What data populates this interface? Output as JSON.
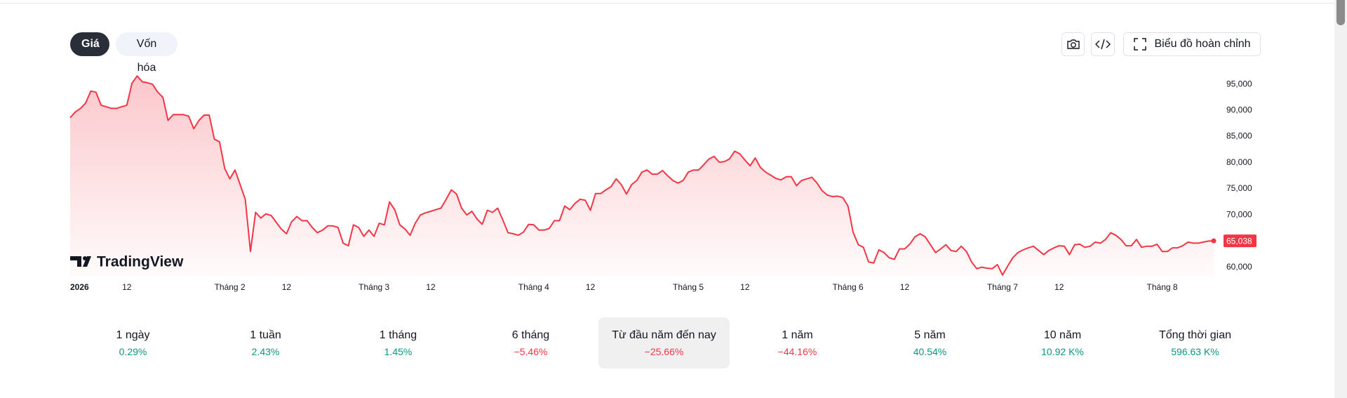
{
  "tabs": [
    "Giá",
    "Vốn hóa"
  ],
  "toolbar": {
    "fullscreen": "Biểu đồ hoàn chỉnh"
  },
  "chart_data": {
    "type": "line",
    "watermark": "TradingView",
    "color": "#f23645",
    "values": [
      88600,
      89700,
      90400,
      91400,
      93700,
      93500,
      91000,
      90700,
      90400,
      90400,
      90700,
      91000,
      95200,
      96600,
      95500,
      95300,
      95000,
      93500,
      92500,
      88100,
      89200,
      89200,
      89200,
      88900,
      86500,
      88100,
      89100,
      89100,
      84500,
      84000,
      78900,
      76900,
      78600,
      75800,
      73000,
      63000,
      70500,
      69400,
      70200,
      69900,
      68600,
      67300,
      66400,
      68700,
      69700,
      68900,
      68900,
      67600,
      66600,
      67100,
      67900,
      67900,
      67600,
      64600,
      64100,
      68100,
      67600,
      65900,
      67100,
      65900,
      68400,
      68100,
      72500,
      71000,
      68100,
      67300,
      66100,
      68400,
      70000,
      70400,
      70700,
      71000,
      71300,
      73000,
      74800,
      74000,
      71300,
      70000,
      70700,
      69200,
      68200,
      70900,
      70500,
      71300,
      69000,
      66600,
      66400,
      66100,
      66700,
      68200,
      68100,
      67100,
      67100,
      67400,
      68900,
      68900,
      71700,
      71000,
      72200,
      73000,
      72800,
      70900,
      74100,
      74100,
      74800,
      75400,
      76900,
      75800,
      74000,
      75800,
      76600,
      78200,
      78600,
      77800,
      77800,
      78500,
      77500,
      76600,
      76100,
      76600,
      78200,
      78600,
      78600,
      79600,
      80700,
      81200,
      80100,
      80200,
      80700,
      82200,
      81700,
      80500,
      79400,
      80900,
      79100,
      78200,
      77600,
      77000,
      76700,
      77300,
      77300,
      75600,
      76600,
      76900,
      77200,
      76100,
      74600,
      73800,
      73500,
      73600,
      73300,
      71700,
      66700,
      64300,
      63800,
      61000,
      60800,
      63300,
      62800,
      61800,
      61500,
      63500,
      63500,
      64400,
      65800,
      66400,
      65800,
      64300,
      62800,
      63500,
      64300,
      63200,
      63000,
      64000,
      63000,
      61000,
      59700,
      60000,
      59800,
      59700,
      60500,
      58500,
      60200,
      61800,
      62800,
      63300,
      63700,
      64000,
      63200,
      62400,
      63200,
      63700,
      64100,
      64000,
      62400,
      64300,
      64400,
      63800,
      64000,
      64800,
      64600,
      65300,
      66600,
      66100,
      65300,
      64100,
      64100,
      65300,
      63800,
      64000,
      64000,
      64400,
      63000,
      63000,
      63700,
      63700,
      64100,
      64800,
      64600,
      64600,
      64800,
      65000,
      65038
    ],
    "value_labels": [
      null,
      null,
      null,
      null,
      null,
      null,
      null,
      null,
      null,
      null,
      null,
      null,
      null,
      null,
      null,
      null,
      null,
      null,
      null,
      null,
      null,
      null,
      null,
      null,
      null,
      null,
      null,
      null,
      null,
      null,
      null,
      null,
      null,
      null,
      null,
      null,
      null,
      null,
      null,
      null,
      null,
      null,
      null,
      null,
      null,
      null,
      null,
      null,
      null,
      null,
      null,
      null,
      null,
      null,
      null,
      null,
      null,
      null,
      null,
      null,
      null,
      null,
      null,
      null,
      null,
      null,
      null,
      null,
      null,
      null,
      null,
      null,
      null,
      null,
      null,
      null,
      null,
      null,
      null,
      null,
      null,
      null,
      null,
      null,
      null,
      null,
      null,
      null,
      null,
      null,
      null,
      null,
      null,
      null,
      null,
      null,
      null,
      null,
      null,
      null,
      null,
      null,
      null,
      null,
      null,
      null,
      null,
      null,
      null,
      null,
      null,
      null,
      null,
      null,
      null,
      null,
      null,
      null,
      null,
      null,
      null,
      null,
      null,
      null,
      null,
      null,
      null,
      null,
      null,
      null,
      null,
      null,
      null,
      null,
      null,
      null,
      null,
      null,
      null,
      null,
      null,
      null,
      null,
      null,
      null,
      null,
      null,
      null,
      null,
      null,
      null,
      null,
      null,
      null,
      null,
      null,
      null,
      null,
      null,
      null,
      null,
      null,
      null,
      null,
      null,
      null,
      null,
      null,
      null,
      null,
      null,
      null,
      null,
      null,
      null,
      null,
      null,
      null,
      null,
      null,
      null,
      null,
      null,
      null,
      null,
      null,
      null,
      null,
      null,
      null,
      null,
      null,
      null,
      null,
      null,
      null,
      null,
      null,
      null,
      null,
      null,
      null,
      null,
      null,
      null,
      null,
      null,
      null,
      null,
      null,
      null,
      null,
      null,
      null,
      null,
      null,
      null,
      null,
      null,
      null,
      null,
      null,
      "65,038"
    ],
    "xlim": [
      0,
      222
    ],
    "xticks": [
      {
        "value": 0,
        "label": "2026"
      },
      {
        "value": 11,
        "label": "12"
      },
      {
        "value": 31,
        "label": "Tháng 2"
      },
      {
        "value": 42,
        "label": "12"
      },
      {
        "value": 59,
        "label": "Tháng 3"
      },
      {
        "value": 70,
        "label": "12"
      },
      {
        "value": 90,
        "label": "Tháng 4"
      },
      {
        "value": 101,
        "label": "12"
      },
      {
        "value": 120,
        "label": "Tháng 5"
      },
      {
        "value": 131,
        "label": "12"
      },
      {
        "value": 151,
        "label": "Tháng 6"
      },
      {
        "value": 162,
        "label": "12"
      },
      {
        "value": 181,
        "label": "Tháng 7"
      },
      {
        "value": 192,
        "label": "12"
      },
      {
        "value": 212,
        "label": "Tháng 8"
      }
    ],
    "ylim": [
      58200,
      97300
    ],
    "yticks": [
      {
        "value": 60000,
        "label": "60,000"
      },
      {
        "value": 65000,
        "label": "65,000"
      },
      {
        "value": 70000,
        "label": "70,000"
      },
      {
        "value": 75000,
        "label": "75,000"
      },
      {
        "value": 80000,
        "label": "80,000"
      },
      {
        "value": 85000,
        "label": "85,000"
      },
      {
        "value": 90000,
        "label": "90,000"
      },
      {
        "value": 95000,
        "label": "95,000"
      }
    ]
  },
  "periods": [
    {
      "name": "1 ngày",
      "change": "0.29%"
    },
    {
      "name": "1 tuần",
      "change": "2.43%"
    },
    {
      "name": "1 tháng",
      "change": "1.45%"
    },
    {
      "name": "6 tháng",
      "change": "−5.46%"
    },
    {
      "name": "Từ đầu năm đến nay",
      "change": "−25.66%"
    },
    {
      "name": "1 năm",
      "change": "−44.16%"
    },
    {
      "name": "5 năm",
      "change": "40.54%"
    },
    {
      "name": "10 năm",
      "change": "10.92 K%"
    },
    {
      "name": "Tổng thời gian",
      "change": "596.63 K%"
    }
  ]
}
